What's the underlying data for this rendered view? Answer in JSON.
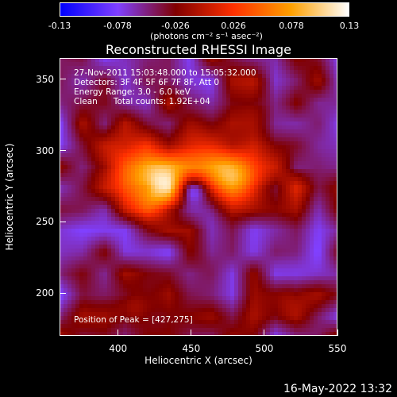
{
  "chart_data": {
    "type": "heatmap",
    "title": "Reconstructed RHESSI Image",
    "colorbar": {
      "min": -0.13,
      "max": 0.13,
      "ticks": [
        "-0.13",
        "-0.078",
        "-0.026",
        "0.026",
        "0.078",
        "0.13"
      ],
      "unit_label": "(photons cm⁻² s⁻¹ asec⁻²)",
      "colors": [
        "#0000ff",
        "#8040ff",
        "#800000",
        "#ff3000",
        "#ffa000",
        "#ffffff"
      ]
    },
    "annotations": [
      "27-Nov-2011 15:03:48.000 to 15:05:32.000",
      "Detectors: 3F 4F 5F 6F 7F 8F, Att 0",
      "Energy Range: 3.0 - 6.0 keV",
      "Clean      Total counts: 1.92E+04"
    ],
    "peak_label": "Position of Peak = [427,275]",
    "peak": {
      "x": 427,
      "y": 275
    },
    "xlabel": "Heliocentric X (arcsec)",
    "ylabel": "Heliocentric Y (arcsec)",
    "xlim": [
      360,
      550
    ],
    "ylim": [
      170,
      365
    ],
    "xticks": [
      400,
      450,
      500,
      550
    ],
    "yticks": [
      200,
      250,
      300,
      350
    ],
    "sources": [
      {
        "x": 427,
        "y": 275,
        "amp": 0.13,
        "sigma": 14
      },
      {
        "x": 478,
        "y": 280,
        "amp": 0.11,
        "sigma": 13
      },
      {
        "x": 455,
        "y": 298,
        "amp": 0.06,
        "sigma": 16
      },
      {
        "x": 400,
        "y": 290,
        "amp": 0.05,
        "sigma": 18
      },
      {
        "x": 510,
        "y": 285,
        "amp": 0.04,
        "sigma": 16
      },
      {
        "x": 452,
        "y": 272,
        "amp": -0.05,
        "sigma": 6
      },
      {
        "x": 495,
        "y": 330,
        "amp": 0.03,
        "sigma": 12
      },
      {
        "x": 410,
        "y": 190,
        "amp": 0.035,
        "sigma": 10
      },
      {
        "x": 460,
        "y": 225,
        "amp": 0.02,
        "sigma": 12
      },
      {
        "x": 520,
        "y": 195,
        "amp": 0.025,
        "sigma": 10
      }
    ]
  },
  "timestamp": "16-May-2022 13:32"
}
